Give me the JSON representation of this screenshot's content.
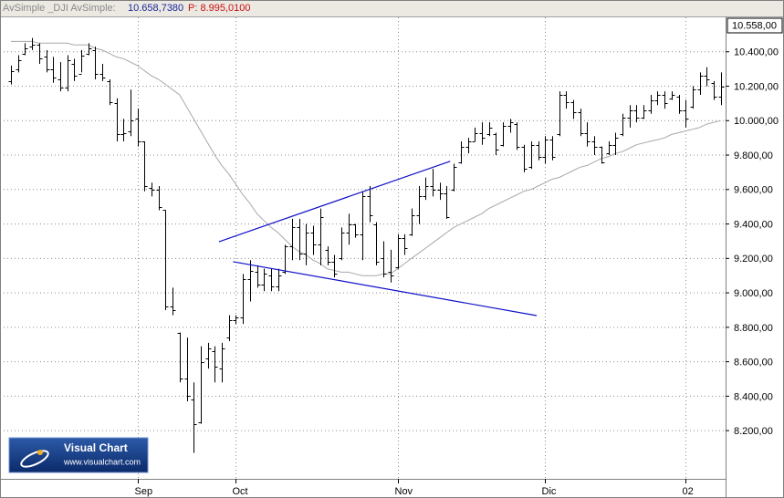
{
  "chart_data": {
    "type": "ohlc",
    "header": {
      "name": "AvSimple _DJI AvSimple:",
      "value": "10.658,7380",
      "price": "P: 8.995,0100"
    },
    "price_tag": "10.558,00",
    "watermark": {
      "title": "Visual Chart",
      "url": "www.visualchart.com"
    },
    "color": "#000000",
    "categories": [
      null,
      null,
      null,
      null,
      null,
      null,
      null,
      null,
      null,
      null,
      null,
      null,
      null,
      null,
      null,
      null,
      null,
      null,
      "Sep",
      null,
      null,
      null,
      null,
      null,
      null,
      null,
      null,
      null,
      null,
      null,
      null,
      null,
      "Oct",
      null,
      null,
      null,
      null,
      null,
      null,
      null,
      null,
      null,
      null,
      null,
      null,
      null,
      null,
      null,
      null,
      null,
      null,
      null,
      null,
      null,
      null,
      "Nov",
      null,
      null,
      null,
      null,
      null,
      null,
      null,
      null,
      null,
      null,
      null,
      null,
      null,
      null,
      null,
      null,
      null,
      null,
      null,
      null,
      "Dic",
      null,
      null,
      null,
      null,
      null,
      null,
      null,
      null,
      null,
      null,
      null,
      null,
      null,
      null,
      null,
      null,
      null,
      null,
      null,
      "02",
      null,
      null,
      null,
      null,
      null
    ],
    "open": [
      10230,
      10300,
      10390,
      10430,
      10440,
      10370,
      10300,
      10240,
      10190,
      10330,
      10270,
      10390,
      10410,
      10270,
      10230,
      10100,
      9920,
      9940,
      10010,
      9880,
      9610,
      9600,
      9480,
      8920,
      8770,
      8500,
      8380,
      8250,
      8620,
      8660,
      8560,
      8740,
      8840,
      8860,
      9080,
      9120,
      9050,
      9100,
      9040,
      9120,
      9270,
      9380,
      9230,
      9350,
      9280,
      9250,
      9180,
      9200,
      9350,
      9400,
      9340,
      9560,
      9400,
      9200,
      9120,
      9150,
      9320,
      9340,
      9450,
      9560,
      9620,
      9600,
      9580,
      9600,
      9760,
      9850,
      9880,
      9930,
      9920,
      9920,
      9860,
      9970,
      9980,
      9850,
      9730,
      9860,
      9790,
      9890,
      9920,
      10150,
      10110,
      10050,
      9930,
      9880,
      9850,
      9810,
      9860,
      9920,
      10020,
      10060,
      10020,
      10060,
      10120,
      10150,
      10130,
      10140,
      10060,
      10080,
      10180,
      10260,
      10220,
      10140
    ],
    "high": [
      10320,
      10380,
      10450,
      10480,
      10450,
      10410,
      10370,
      10340,
      10380,
      10360,
      10410,
      10450,
      10430,
      10330,
      10240,
      10130,
      10010,
      10180,
      10070,
      9880,
      9640,
      9620,
      9480,
      9030,
      8770,
      8740,
      8480,
      8690,
      8710,
      8690,
      8710,
      8870,
      8870,
      9110,
      9190,
      9160,
      9140,
      9140,
      9140,
      9280,
      9430,
      9430,
      9400,
      9390,
      9490,
      9270,
      9220,
      9380,
      9460,
      9400,
      9590,
      9620,
      9410,
      9300,
      9250,
      9340,
      9340,
      9490,
      9620,
      9670,
      9720,
      9640,
      9620,
      9750,
      9880,
      9900,
      9960,
      9990,
      9990,
      9930,
      9990,
      10010,
      9990,
      9860,
      9880,
      9880,
      9910,
      9910,
      10170,
      10170,
      10120,
      10070,
      9990,
      9910,
      9850,
      9880,
      9930,
      10040,
      10090,
      10090,
      10090,
      10150,
      10170,
      10170,
      10170,
      10150,
      10120,
      10200,
      10280,
      10310,
      10230,
      10280
    ],
    "low": [
      10210,
      10280,
      10380,
      10410,
      10330,
      10280,
      10220,
      10170,
      10170,
      10230,
      10280,
      10380,
      10240,
      10230,
      10090,
      9880,
      9880,
      9910,
      9850,
      9590,
      9560,
      9480,
      8900,
      8870,
      8480,
      8370,
      8070,
      8240,
      8560,
      8480,
      8480,
      8720,
      8820,
      8820,
      8950,
      9030,
      9010,
      9010,
      9010,
      9110,
      9190,
      9190,
      9160,
      9220,
      9160,
      9160,
      9090,
      9190,
      9280,
      9320,
      9190,
      9410,
      9160,
      9090,
      9060,
      9140,
      9220,
      9330,
      9400,
      9540,
      9560,
      9540,
      9430,
      9590,
      9750,
      9810,
      9880,
      9860,
      9910,
      9800,
      9850,
      9930,
      9830,
      9700,
      9720,
      9770,
      9750,
      9770,
      9910,
      10070,
      10010,
      9910,
      9850,
      9800,
      9750,
      9800,
      9800,
      9910,
      9960,
      9990,
      10010,
      10040,
      10090,
      10070,
      10120,
      10040,
      9960,
      10070,
      10150,
      10200,
      10120,
      10090
    ],
    "close": [
      10290,
      10350,
      10420,
      10440,
      10360,
      10300,
      10250,
      10190,
      10350,
      10260,
      10380,
      10420,
      10270,
      10250,
      10110,
      9920,
      9930,
      10000,
      9880,
      9620,
      9600,
      9500,
      8920,
      8900,
      8500,
      8400,
      8240,
      8600,
      8680,
      8570,
      8680,
      8840,
      8860,
      9080,
      9130,
      9050,
      9110,
      9040,
      9100,
      9270,
      9380,
      9230,
      9350,
      9280,
      9440,
      9180,
      9110,
      9350,
      9400,
      9340,
      9560,
      9450,
      9180,
      9110,
      9100,
      9320,
      9260,
      9450,
      9560,
      9620,
      9600,
      9580,
      9440,
      9730,
      9850,
      9880,
      9930,
      9900,
      9960,
      9830,
      9970,
      9990,
      9850,
      9720,
      9860,
      9790,
      9890,
      9790,
      10150,
      10110,
      10050,
      9930,
      9880,
      9850,
      9760,
      9860,
      9900,
      10020,
      10060,
      10020,
      10060,
      10120,
      10150,
      10100,
      10150,
      10060,
      10010,
      10180,
      10260,
      10240,
      10140,
      10200
    ],
    "moving_average": {
      "color": "#a8a8a8",
      "values": [
        10460,
        10460,
        10460,
        10460,
        10450,
        10450,
        10450,
        10450,
        10450,
        10440,
        10440,
        10440,
        10420,
        10410,
        10390,
        10370,
        10360,
        10340,
        10320,
        10290,
        10260,
        10240,
        10210,
        10180,
        10150,
        10080,
        10010,
        9940,
        9870,
        9800,
        9740,
        9690,
        9630,
        9570,
        9520,
        9460,
        9420,
        9380,
        9350,
        9310,
        9270,
        9240,
        9220,
        9190,
        9170,
        9140,
        9130,
        9120,
        9120,
        9110,
        9100,
        9100,
        9100,
        9110,
        9110,
        9140,
        9170,
        9200,
        9230,
        9260,
        9290,
        9320,
        9350,
        9380,
        9400,
        9420,
        9440,
        9460,
        9490,
        9510,
        9530,
        9550,
        9570,
        9590,
        9600,
        9620,
        9640,
        9660,
        9670,
        9690,
        9710,
        9730,
        9740,
        9760,
        9780,
        9790,
        9810,
        9820,
        9840,
        9860,
        9870,
        9880,
        9890,
        9900,
        9920,
        9930,
        9940,
        9950,
        9960,
        9980,
        9990,
        10000
      ]
    },
    "trendlines": [
      {
        "color": "#1010c8",
        "x": [
          29.6,
          62.5
        ],
        "y": [
          9297,
          9764
        ]
      },
      {
        "color": "#1010c8",
        "x": [
          31.6,
          74.8
        ],
        "y": [
          9181,
          8868
        ]
      }
    ],
    "ylim": [
      7920,
      10600
    ],
    "yticks": [
      {
        "value": 8200,
        "label": "8.200,00"
      },
      {
        "value": 8400,
        "label": "8.400,00"
      },
      {
        "value": 8600,
        "label": "8.600,00"
      },
      {
        "value": 8800,
        "label": "8.800,00"
      },
      {
        "value": 9000,
        "label": "9.000,00"
      },
      {
        "value": 9200,
        "label": "9.200,00"
      },
      {
        "value": 9400,
        "label": "9.400,00"
      },
      {
        "value": 9600,
        "label": "9.600,00"
      },
      {
        "value": 9800,
        "label": "9.800,00"
      },
      {
        "value": 10000,
        "label": "10.000,00"
      },
      {
        "value": 10200,
        "label": "10.200,00"
      },
      {
        "value": 10400,
        "label": "10.400,00"
      }
    ],
    "grid": true
  }
}
